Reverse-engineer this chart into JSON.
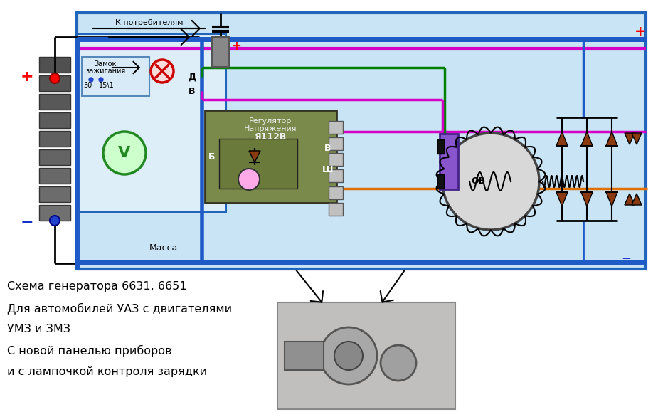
{
  "bg_color": "#ffffff",
  "diag_bg": "#c8e4f5",
  "left_panel_bg": "#ddeef8",
  "title_lines": [
    "Схема генератора 6631, 6651",
    "Для автомобилей УАЗ с двигателями",
    "УМЗ и ЗМЗ",
    "С новой панелью приборов",
    "и с лампочкой контроля зарядки"
  ],
  "lbl_k_potr": "К потребителям",
  "lbl_zamok1": "Замок",
  "lbl_zamok2": "зажигания",
  "lbl_massa": "Масса",
  "lbl_reg1": "Регулятор",
  "lbl_reg2": "Напряжения",
  "lbl_reg3": "Я112В",
  "lbl_D": "Д",
  "lbl_B": "В",
  "lbl_Sh": "Ш",
  "lbl_Bterm": "Б",
  "lbl_Vterm": "В",
  "lbl_OB": "ОВ",
  "lbl_30": "30",
  "lbl_151": "15\\1",
  "plus_l": "+",
  "minus_l": "−",
  "plus_r": "+",
  "minus_r": "−",
  "col_blue": "#1e5bc6",
  "col_pink": "#d400c8",
  "col_green": "#008000",
  "col_orange": "#e07000",
  "col_red": "#cc0000",
  "col_gray_bus": "#777777",
  "col_diag_border": "#2266bb",
  "col_batt": "#888888",
  "col_reg": "#7a8a4a",
  "col_purple": "#8855cc",
  "col_diode": "#8B3A10"
}
